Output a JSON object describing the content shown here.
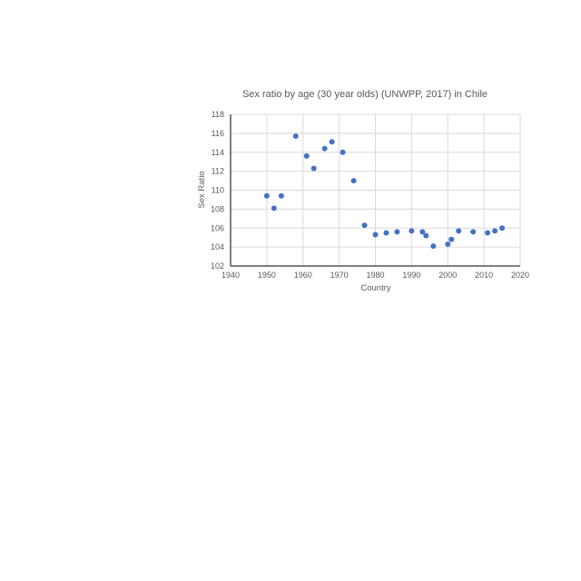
{
  "chart_data": {
    "type": "scatter",
    "title": "Sex ratio by age (30 year olds) (UNWPP, 2017) in Chile",
    "xlabel": "Country",
    "ylabel": "Sex Ratio",
    "xlim": [
      1940,
      2020
    ],
    "ylim": [
      102,
      118
    ],
    "x_ticks": [
      "1940",
      "1950",
      "1960",
      "1970",
      "1980",
      "1990",
      "2000",
      "2010",
      "2020"
    ],
    "y_ticks": [
      "102",
      "104",
      "106",
      "108",
      "110",
      "112",
      "114",
      "116",
      "118"
    ],
    "grid": true,
    "legend": "none",
    "color": "#4472c4",
    "points": [
      {
        "x": 1950,
        "y": 109.4
      },
      {
        "x": 1952,
        "y": 108.1
      },
      {
        "x": 1954,
        "y": 109.4
      },
      {
        "x": 1958,
        "y": 115.7
      },
      {
        "x": 1961,
        "y": 113.6
      },
      {
        "x": 1963,
        "y": 112.3
      },
      {
        "x": 1966,
        "y": 114.4
      },
      {
        "x": 1968,
        "y": 115.1
      },
      {
        "x": 1971,
        "y": 114.0
      },
      {
        "x": 1974,
        "y": 111.0
      },
      {
        "x": 1977,
        "y": 106.3
      },
      {
        "x": 1980,
        "y": 105.3
      },
      {
        "x": 1983,
        "y": 105.5
      },
      {
        "x": 1986,
        "y": 105.6
      },
      {
        "x": 1990,
        "y": 105.7
      },
      {
        "x": 1993,
        "y": 105.6
      },
      {
        "x": 1994,
        "y": 105.2
      },
      {
        "x": 1996,
        "y": 104.1
      },
      {
        "x": 2000,
        "y": 104.3
      },
      {
        "x": 2001,
        "y": 104.8
      },
      {
        "x": 2003,
        "y": 105.7
      },
      {
        "x": 2007,
        "y": 105.6
      },
      {
        "x": 2011,
        "y": 105.5
      },
      {
        "x": 2013,
        "y": 105.7
      },
      {
        "x": 2015,
        "y": 106.0
      }
    ]
  }
}
